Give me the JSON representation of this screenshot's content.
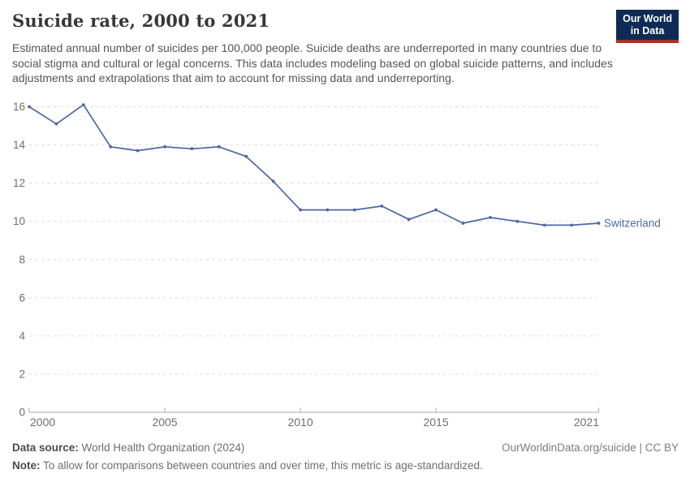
{
  "header": {
    "title": "Suicide rate, 2000 to 2021",
    "subtitle": "Estimated annual number of suicides per 100,000 people. Suicide deaths are underreported in many countries due to social stigma and cultural or legal concerns. This data includes modeling based on global suicide patterns, and includes adjustments and extrapolations that aim to account for missing data and underreporting.",
    "logo": {
      "line1": "Our World",
      "line2": "in Data",
      "bg_color": "#0e2b55",
      "bar_color": "#a93226"
    }
  },
  "chart_data": {
    "type": "line",
    "title": "Suicide rate, 2000 to 2021",
    "xlabel": "",
    "ylabel": "",
    "x": [
      2000,
      2001,
      2002,
      2003,
      2004,
      2005,
      2006,
      2007,
      2008,
      2009,
      2010,
      2011,
      2012,
      2013,
      2014,
      2015,
      2016,
      2017,
      2018,
      2019,
      2020,
      2021
    ],
    "series": [
      {
        "name": "Switzerland",
        "color": "#4a69a3",
        "values": [
          16.0,
          15.1,
          16.1,
          13.9,
          13.7,
          13.9,
          13.8,
          13.9,
          13.4,
          12.1,
          10.6,
          10.6,
          10.6,
          10.8,
          10.1,
          10.6,
          9.9,
          10.2,
          10.0,
          9.8,
          9.8,
          9.9
        ]
      }
    ],
    "xlim": [
      2000,
      2021
    ],
    "ylim": [
      0,
      16
    ],
    "x_ticks": [
      2000,
      2005,
      2010,
      2015,
      2021
    ],
    "y_ticks": [
      0,
      2,
      4,
      6,
      8,
      10,
      12,
      14,
      16
    ],
    "grid": "horizontal-dashed",
    "grid_color": "#dcdcdc",
    "axis_color": "#a8a8a8",
    "tick_label_color": "#6f6f6f",
    "legend_position": "end-of-line-label"
  },
  "footer": {
    "source_label": "Data source:",
    "source_text": " World Health Organization (2024)",
    "rights": "OurWorldinData.org/suicide | CC BY",
    "note_label": "Note:",
    "note_text": " To allow for comparisons between countries and over time, this metric is age-standardized."
  }
}
